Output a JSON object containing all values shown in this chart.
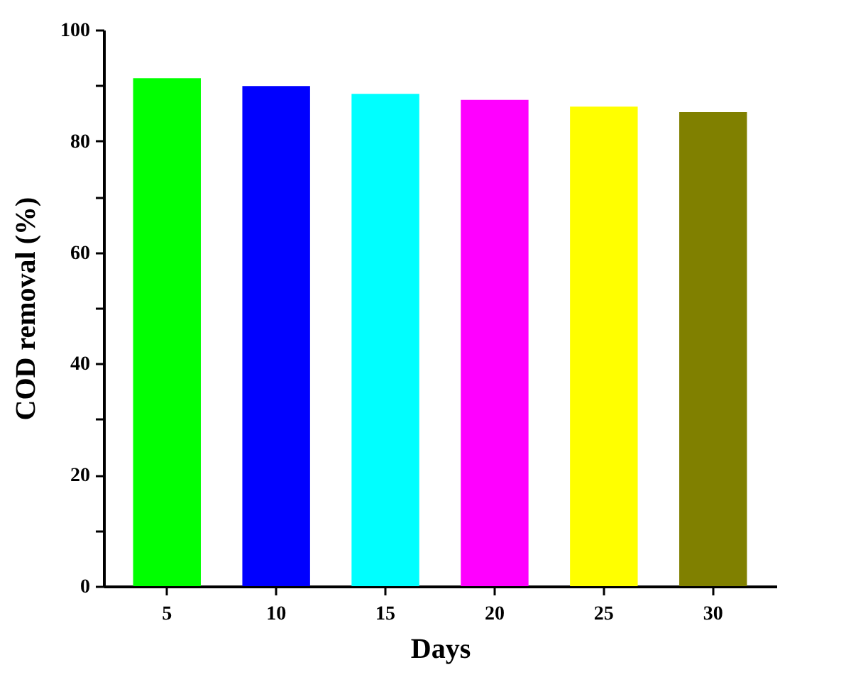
{
  "chart_data": {
    "type": "bar",
    "xlabel": "Days",
    "ylabel": "COD removal (%)",
    "categories": [
      "5",
      "10",
      "15",
      "20",
      "25",
      "30"
    ],
    "values": [
      91.3,
      89.9,
      88.5,
      87.4,
      86.2,
      85.2
    ],
    "colors": [
      "#00ff00",
      "#0000ff",
      "#00ffff",
      "#ff00ff",
      "#ffff00",
      "#808000"
    ],
    "ylim": [
      0,
      100
    ],
    "yticks": [
      0,
      {
        "value": 10,
        "label": null
      },
      20,
      {
        "value": 30,
        "label": null
      },
      40,
      {
        "value": 50,
        "label": null
      },
      60,
      {
        "value": 70,
        "label": null
      },
      80,
      {
        "value": 90,
        "label": null
      },
      100
    ],
    "grid": false
  }
}
